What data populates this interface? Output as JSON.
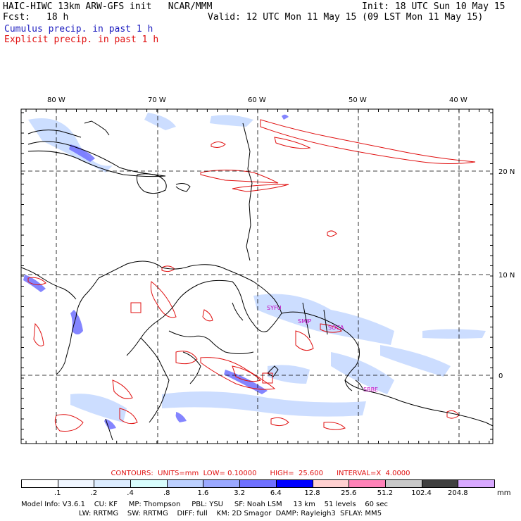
{
  "header": {
    "model_line": "HAIC-HIWC 13km ARW-GFS init   NCAR/MMM",
    "init_line": "Init: 18 UTC Sun 10 May 15",
    "fcst_label": "Fcst:",
    "fcst_value": "18 h",
    "valid_line": "Valid: 12 UTC Mon 11 May 15 (09 LST Mon 11 May 15)",
    "cumulus_label": "Cumulus precip. in past 1 h",
    "explicit_label": "Explicit precip. in past 1 h"
  },
  "map": {
    "lon_labels": [
      "80 W",
      "70 W",
      "60 W",
      "50 W",
      "40 W"
    ],
    "lat_labels": [
      "20 N",
      "10 N",
      "0"
    ],
    "stations": [
      "SYFU",
      "SMJP",
      "SOCA",
      "SBBE"
    ],
    "colors": {
      "coast": "#000000",
      "contour": "#e01010",
      "grid": "#000000",
      "station": "#c000c0"
    }
  },
  "contours_line": {
    "label": "CONTOURS:",
    "units": "UNITS=mm",
    "low": "LOW= 0.10000",
    "high": "HIGH=  25.600",
    "interval": "INTERVAL=X  4.0000"
  },
  "colorbar": {
    "unit": "mm",
    "ticks": [
      ".1",
      ".2",
      ".4",
      ".8",
      "1.6",
      "3.2",
      "6.4",
      "12.8",
      "25.6",
      "51.2",
      "102.4",
      "204.8"
    ],
    "colors": [
      "#ffffff",
      "#f0f6ff",
      "#dcecff",
      "#d8fdfd",
      "#bcd0ff",
      "#9aa8ff",
      "#6f70ff",
      "#0000ff",
      "#ffd0d0",
      "#ff82b8",
      "#c8c8c8",
      "#404040",
      "#d8a8ff"
    ]
  },
  "model_info": {
    "line1": [
      "Model Info: V3.6.1",
      "CU: KF",
      "MP: Thompson",
      "PBL: YSU",
      "SF: Noah LSM",
      "13 km",
      "51 levels",
      "60 sec"
    ],
    "line2": [
      "LW: RRTMG",
      "SW: RRTMG",
      "DIFF: full",
      "KM: 2D Smagor",
      "DAMP: Rayleigh3",
      "SFLAY: MM5"
    ]
  }
}
